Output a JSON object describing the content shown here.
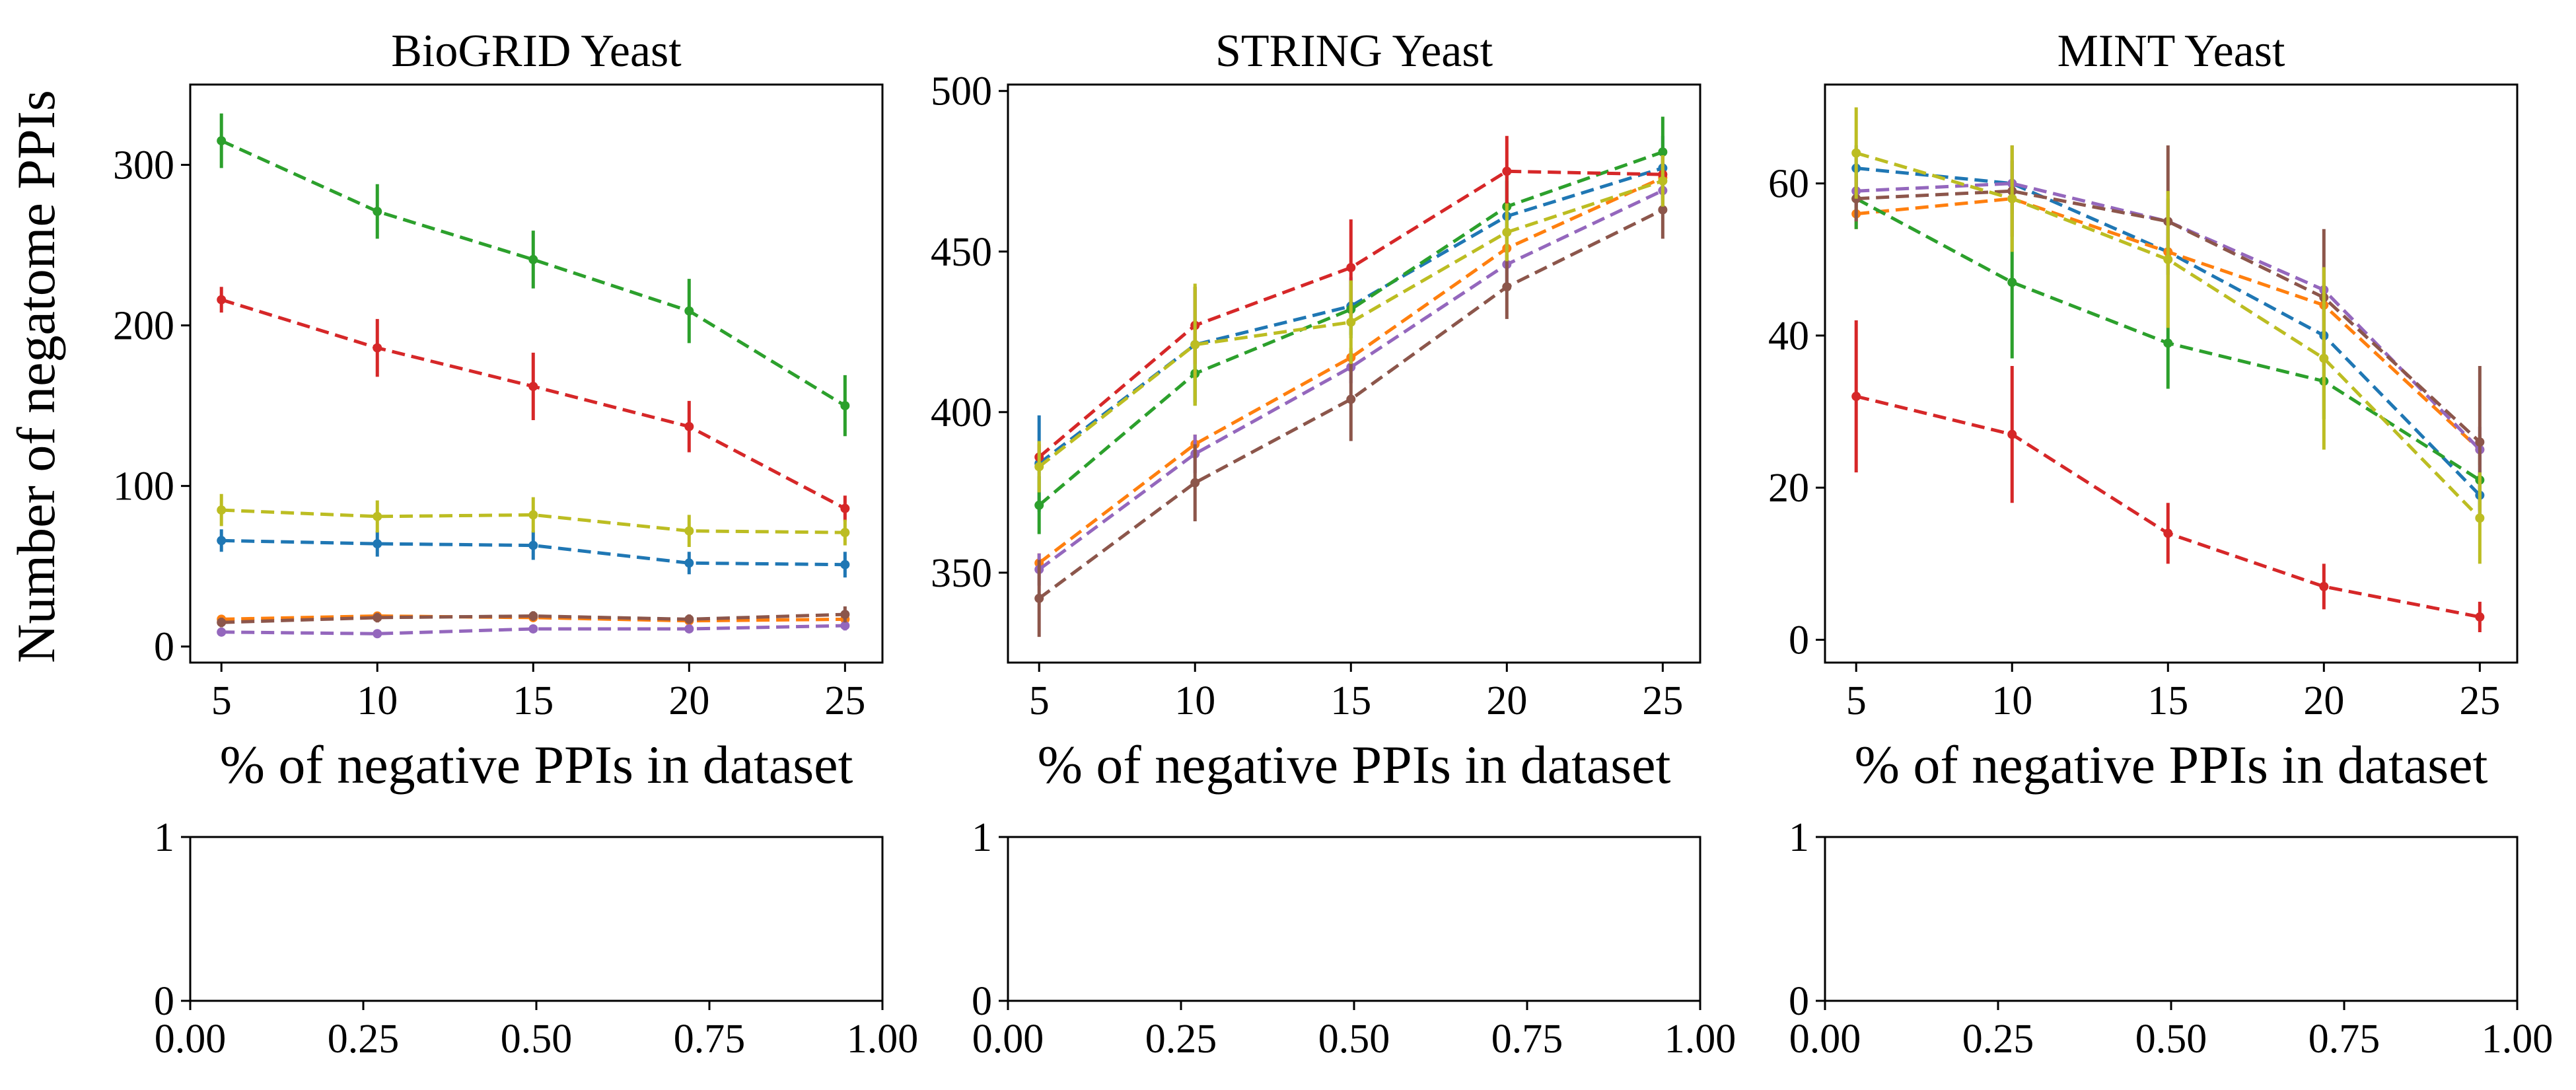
{
  "figure": {
    "ylabel": "Number of negatome PPIs"
  },
  "colors": {
    "blue": "#1f77b4",
    "orange": "#ff7f0e",
    "green": "#2ca02c",
    "red": "#d62728",
    "purple": "#9467bd",
    "brown": "#8c564b",
    "olive": "#bcbd22"
  },
  "chart_data": [
    {
      "type": "line",
      "title": "BioGRID Yeast",
      "xlabel": "% of negative PPIs in dataset",
      "ylabel": "Number of negatome PPIs",
      "x": [
        5,
        10,
        15,
        20,
        25
      ],
      "xticks": [
        "5",
        "10",
        "15",
        "20",
        "25"
      ],
      "xlim": [
        4,
        26.2
      ],
      "yticks": [
        "0",
        "100",
        "200",
        "300"
      ],
      "ylim": [
        -10,
        350
      ],
      "line_style": "dashed",
      "error_bars": true,
      "series": [
        {
          "color": "#1f77b4",
          "values": [
            66,
            64,
            63,
            52,
            51
          ],
          "errors": [
            7,
            8,
            9,
            7,
            8
          ]
        },
        {
          "color": "#ff7f0e",
          "values": [
            17,
            19,
            18,
            16,
            17
          ],
          "errors": [
            2,
            2,
            2,
            2,
            3
          ]
        },
        {
          "color": "#2ca02c",
          "values": [
            315,
            271,
            241,
            209,
            150
          ],
          "errors": [
            17,
            17,
            18,
            20,
            19
          ]
        },
        {
          "color": "#d62728",
          "values": [
            216,
            186,
            162,
            137,
            86
          ],
          "errors": [
            8,
            18,
            21,
            16,
            8
          ]
        },
        {
          "color": "#9467bd",
          "values": [
            9,
            8,
            11,
            11,
            13
          ],
          "errors": [
            2,
            2,
            2,
            2,
            3
          ]
        },
        {
          "color": "#8c564b",
          "values": [
            15,
            18,
            19,
            17,
            20
          ],
          "errors": [
            3,
            3,
            3,
            3,
            5
          ]
        },
        {
          "color": "#bcbd22",
          "values": [
            85,
            81,
            82,
            72,
            71
          ],
          "errors": [
            10,
            10,
            11,
            10,
            8
          ]
        }
      ]
    },
    {
      "type": "line",
      "title": "STRING Yeast",
      "xlabel": "% of negative PPIs in dataset",
      "x": [
        5,
        10,
        15,
        20,
        25
      ],
      "xticks": [
        "5",
        "10",
        "15",
        "20",
        "25"
      ],
      "xlim": [
        4,
        26.2
      ],
      "yticks": [
        "350",
        "400",
        "450",
        "500"
      ],
      "ylim": [
        322,
        502
      ],
      "line_style": "dashed",
      "error_bars": true,
      "series": [
        {
          "color": "#1f77b4",
          "values": [
            384,
            421,
            433,
            461,
            476
          ],
          "errors": [
            15,
            18,
            9,
            11,
            10
          ]
        },
        {
          "color": "#ff7f0e",
          "values": [
            353,
            390,
            417,
            451,
            473
          ],
          "errors": [
            3,
            3,
            3,
            4,
            4
          ]
        },
        {
          "color": "#2ca02c",
          "values": [
            371,
            412,
            432,
            464,
            481
          ],
          "errors": [
            9,
            10,
            9,
            10,
            11
          ]
        },
        {
          "color": "#d62728",
          "values": [
            386,
            427,
            445,
            475,
            474
          ],
          "errors": [
            4,
            12,
            15,
            11,
            6
          ]
        },
        {
          "color": "#9467bd",
          "values": [
            351,
            387,
            414,
            446,
            469
          ],
          "errors": [
            5,
            6,
            5,
            6,
            5
          ]
        },
        {
          "color": "#8c564b",
          "values": [
            342,
            378,
            404,
            439,
            463
          ],
          "errors": [
            12,
            12,
            13,
            10,
            9
          ]
        },
        {
          "color": "#bcbd22",
          "values": [
            383,
            421,
            428,
            456,
            472
          ],
          "errors": [
            8,
            19,
            13,
            9,
            8
          ]
        }
      ]
    },
    {
      "type": "line",
      "title": "MINT Yeast",
      "xlabel": "% of negative PPIs in dataset",
      "x": [
        5,
        10,
        15,
        20,
        25
      ],
      "xticks": [
        "5",
        "10",
        "15",
        "20",
        "25"
      ],
      "xlim": [
        4,
        26.2
      ],
      "yticks": [
        "0",
        "20",
        "40",
        "60"
      ],
      "ylim": [
        -3,
        73
      ],
      "line_style": "dashed",
      "error_bars": true,
      "series": [
        {
          "color": "#1f77b4",
          "values": [
            62,
            60,
            51,
            40,
            19
          ],
          "errors": [
            3,
            3,
            3,
            3,
            3
          ]
        },
        {
          "color": "#ff7f0e",
          "values": [
            56,
            58,
            51,
            44,
            25
          ],
          "errors": [
            2,
            2,
            2,
            2,
            2
          ]
        },
        {
          "color": "#2ca02c",
          "values": [
            58,
            47,
            39,
            34,
            21
          ],
          "errors": [
            4,
            10,
            6,
            5,
            4
          ]
        },
        {
          "color": "#d62728",
          "values": [
            32,
            27,
            14,
            7,
            3
          ],
          "errors": [
            10,
            9,
            4,
            3,
            2
          ]
        },
        {
          "color": "#9467bd",
          "values": [
            59,
            60,
            55,
            46,
            25
          ],
          "errors": [
            2,
            3,
            3,
            3,
            3
          ]
        },
        {
          "color": "#8c564b",
          "values": [
            58,
            59,
            55,
            45,
            26
          ],
          "errors": [
            3,
            6,
            10,
            9,
            10
          ]
        },
        {
          "color": "#bcbd22",
          "values": [
            64,
            58,
            50,
            37,
            16
          ],
          "errors": [
            6,
            7,
            9,
            12,
            6
          ]
        }
      ]
    },
    {
      "type": "line",
      "title": "",
      "xticks": [
        "0.00",
        "0.25",
        "0.50",
        "0.75",
        "1.00"
      ],
      "xlim": [
        0,
        1
      ],
      "yticks": [
        "0",
        "1"
      ],
      "ylim": [
        0,
        1
      ],
      "series": []
    },
    {
      "type": "line",
      "title": "",
      "xticks": [
        "0.00",
        "0.25",
        "0.50",
        "0.75",
        "1.00"
      ],
      "xlim": [
        0,
        1
      ],
      "yticks": [
        "0",
        "1"
      ],
      "ylim": [
        0,
        1
      ],
      "series": []
    },
    {
      "type": "line",
      "title": "",
      "xticks": [
        "0.00",
        "0.25",
        "0.50",
        "0.75",
        "1.00"
      ],
      "xlim": [
        0,
        1
      ],
      "yticks": [
        "0",
        "1"
      ],
      "ylim": [
        0,
        1
      ],
      "series": []
    }
  ]
}
